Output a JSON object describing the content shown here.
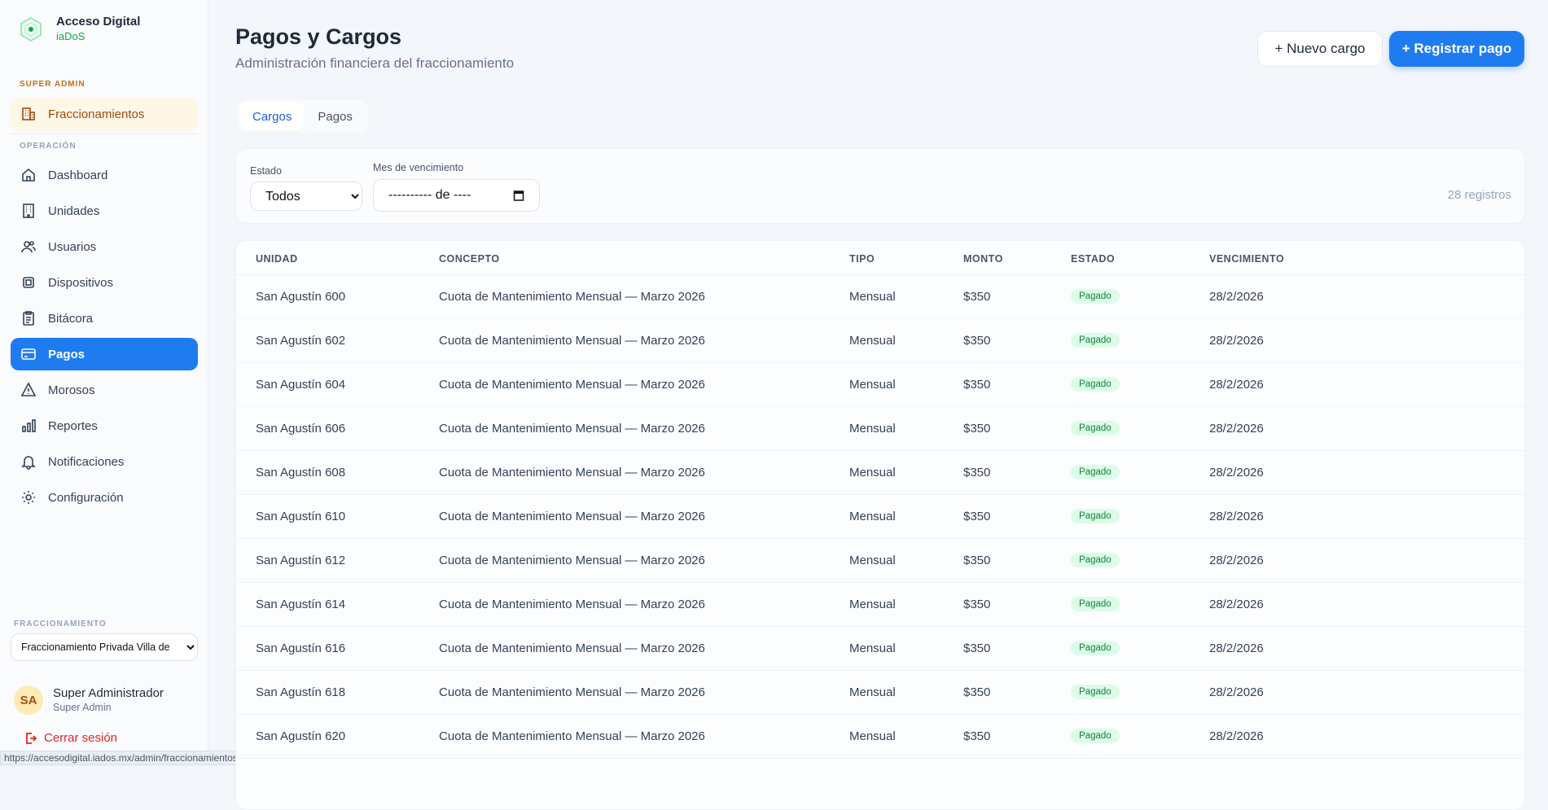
{
  "brand": {
    "title": "Acceso Digital",
    "subtitle": "iaDoS"
  },
  "sidebar": {
    "super_admin_label": "SUPER ADMIN",
    "super_item": "Fraccionamientos",
    "operacion_label": "OPERACIÓN",
    "items": [
      {
        "label": "Dashboard",
        "icon": "home-icon"
      },
      {
        "label": "Unidades",
        "icon": "building-icon"
      },
      {
        "label": "Usuarios",
        "icon": "users-icon"
      },
      {
        "label": "Dispositivos",
        "icon": "chip-icon"
      },
      {
        "label": "Bitácora",
        "icon": "clipboard-icon"
      },
      {
        "label": "Pagos",
        "icon": "credit-card-icon",
        "active": true
      },
      {
        "label": "Morosos",
        "icon": "warning-icon"
      },
      {
        "label": "Reportes",
        "icon": "bar-chart-icon"
      },
      {
        "label": "Notificaciones",
        "icon": "bell-icon"
      },
      {
        "label": "Configuración",
        "icon": "gear-icon"
      }
    ],
    "fraccionamiento_label": "FRACCIONAMIENTO",
    "fraccionamiento_value": "Fraccionamiento Privada Villa de",
    "user": {
      "initials": "SA",
      "name": "Super Administrador",
      "role": "Super Admin"
    },
    "logout": "Cerrar sesión"
  },
  "status_url": "https://accesodigital.iados.mx/admin/fraccionamientos",
  "header": {
    "title": "Pagos y Cargos",
    "subtitle": "Administración financiera del fraccionamiento",
    "new_charge": "+ Nuevo cargo",
    "register_payment": "+ Registrar pago"
  },
  "tabs": [
    {
      "label": "Cargos",
      "active": true
    },
    {
      "label": "Pagos"
    }
  ],
  "filters": {
    "estado_label": "Estado",
    "estado_value": "Todos",
    "mes_label": "Mes de vencimiento",
    "mes_value": "---------- de ----",
    "count": "28 registros"
  },
  "table": {
    "headers": [
      "UNIDAD",
      "CONCEPTO",
      "TIPO",
      "MONTO",
      "ESTADO",
      "VENCIMIENTO"
    ],
    "rows": [
      [
        "San Agustín 600",
        "Cuota de Mantenimiento Mensual — Marzo 2026",
        "Mensual",
        "$350",
        "Pagado",
        "28/2/2026"
      ],
      [
        "San Agustín 602",
        "Cuota de Mantenimiento Mensual — Marzo 2026",
        "Mensual",
        "$350",
        "Pagado",
        "28/2/2026"
      ],
      [
        "San Agustín 604",
        "Cuota de Mantenimiento Mensual — Marzo 2026",
        "Mensual",
        "$350",
        "Pagado",
        "28/2/2026"
      ],
      [
        "San Agustín 606",
        "Cuota de Mantenimiento Mensual — Marzo 2026",
        "Mensual",
        "$350",
        "Pagado",
        "28/2/2026"
      ],
      [
        "San Agustín 608",
        "Cuota de Mantenimiento Mensual — Marzo 2026",
        "Mensual",
        "$350",
        "Pagado",
        "28/2/2026"
      ],
      [
        "San Agustín 610",
        "Cuota de Mantenimiento Mensual — Marzo 2026",
        "Mensual",
        "$350",
        "Pagado",
        "28/2/2026"
      ],
      [
        "San Agustín 612",
        "Cuota de Mantenimiento Mensual — Marzo 2026",
        "Mensual",
        "$350",
        "Pagado",
        "28/2/2026"
      ],
      [
        "San Agustín 614",
        "Cuota de Mantenimiento Mensual — Marzo 2026",
        "Mensual",
        "$350",
        "Pagado",
        "28/2/2026"
      ],
      [
        "San Agustín 616",
        "Cuota de Mantenimiento Mensual — Marzo 2026",
        "Mensual",
        "$350",
        "Pagado",
        "28/2/2026"
      ],
      [
        "San Agustín 618",
        "Cuota de Mantenimiento Mensual — Marzo 2026",
        "Mensual",
        "$350",
        "Pagado",
        "28/2/2026"
      ],
      [
        "San Agustín 620",
        "Cuota de Mantenimiento Mensual — Marzo 2026",
        "Mensual",
        "$350",
        "Pagado",
        "28/2/2026"
      ]
    ]
  },
  "colors": {
    "accent": "#1f7cf0",
    "paid_bg": "#dcfce7",
    "paid_text": "#15803d",
    "danger": "#dc2626",
    "super_admin": "#c2700f"
  }
}
